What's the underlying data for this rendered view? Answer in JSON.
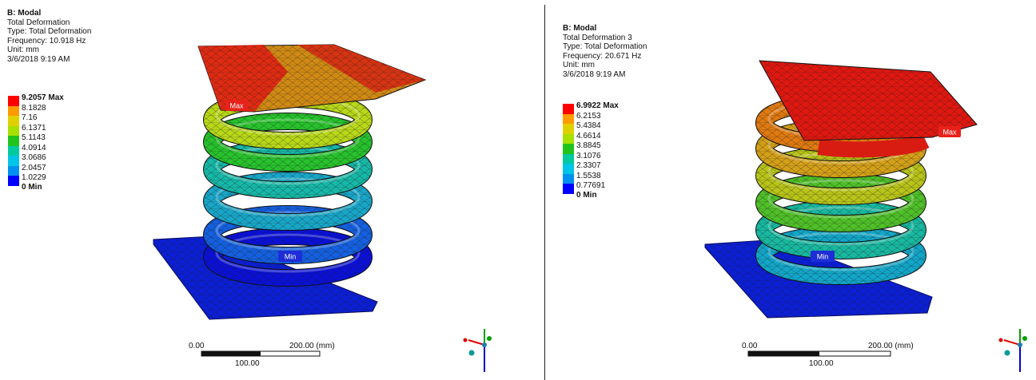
{
  "panels": [
    {
      "title": "B: Modal",
      "lines": [
        "Total Deformation",
        "Type: Total Deformation",
        "Frequency: 10.918 Hz",
        "Unit: mm",
        "3/6/2018 9:19 AM"
      ],
      "legend": [
        "9.2057 Max",
        "8.1828",
        "7.16",
        "6.1371",
        "5.1143",
        "4.0914",
        "3.0686",
        "2.0457",
        "1.0229",
        "0 Min"
      ],
      "max_tag": "Max",
      "min_tag": "Min",
      "scale": {
        "start": "0.00",
        "end": "200.00 (mm)",
        "mid": "100.00"
      }
    },
    {
      "title": "B: Modal",
      "lines": [
        "Total Deformation 3",
        "Type: Total Deformation",
        "Frequency: 20.671 Hz",
        "Unit: mm",
        "3/6/2018 9:19 AM"
      ],
      "legend": [
        "6.9922 Max",
        "6.2153",
        "5.4384",
        "4.6614",
        "3.8845",
        "3.1076",
        "2.3307",
        "1.5538",
        "0.77691",
        "0 Min"
      ],
      "max_tag": "Max",
      "min_tag": "Min",
      "scale": {
        "start": "0.00",
        "end": "200.00 (mm)",
        "mid": "100.00"
      }
    }
  ],
  "colors": {
    "contour": [
      "#ff0000",
      "#ff9a00",
      "#e0d000",
      "#a8e000",
      "#22c41c",
      "#00c9a0",
      "#00c4e8",
      "#0090f0",
      "#0000ff"
    ],
    "mesh": "#1b1b1b",
    "axis_x": "#e00000",
    "axis_y": "#00a000",
    "axis_z": "#0000d0"
  }
}
